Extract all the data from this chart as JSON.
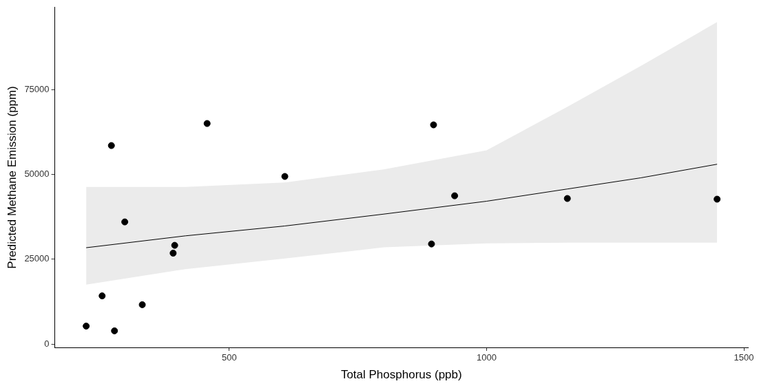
{
  "chart_data": {
    "type": "scatter",
    "xlabel": "Total Phosphorus (ppb)",
    "ylabel": "Predicted Methane Emission (ppm)",
    "xlim": [
      161,
      1508
    ],
    "ylim": [
      -984,
      99210
    ],
    "xticks": [
      500,
      1000,
      1500
    ],
    "yticks": [
      0,
      25000,
      50000,
      75000
    ],
    "grid": false,
    "legend": false,
    "marker": "circle",
    "series": [
      {
        "type": "line",
        "color": "#000000",
        "marker": "none",
        "x": [
          222,
          415,
          608,
          800,
          1000,
          1157,
          1300,
          1448
        ],
        "values": [
          28400,
          31900,
          34800,
          38300,
          42100,
          45700,
          49000,
          53000
        ],
        "lower": [
          17500,
          22100,
          25200,
          28500,
          29700,
          29900,
          29900,
          29900
        ],
        "upper": [
          46300,
          46300,
          47600,
          51500,
          57100,
          69900,
          82000,
          94900
        ]
      },
      {
        "color": "#000000",
        "x": [
          222,
          253,
          271,
          277,
          297,
          331,
          391,
          394,
          457,
          608,
          893,
          897,
          938,
          1157,
          1448
        ],
        "values": [
          5300,
          14200,
          58500,
          3900,
          36000,
          11600,
          26800,
          29100,
          65000,
          49400,
          29500,
          64600,
          43700,
          42900,
          42700
        ]
      }
    ]
  }
}
